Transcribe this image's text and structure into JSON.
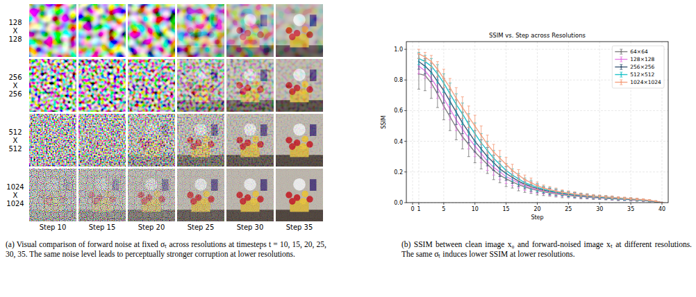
{
  "panel_a": {
    "row_labels": [
      "128 X 128",
      "256 X 256",
      "512 X 512",
      "1024 X 1024"
    ],
    "column_labels": [
      "Step 10",
      "Step 15",
      "Step 20",
      "Step 25",
      "Step 30",
      "Step 35"
    ]
  },
  "captions": {
    "a": "(a) Visual comparison of forward noise at fixed σₜ across resolutions at timesteps t = 10, 15, 20, 25, 30, 35. The same noise level leads to perceptually stronger corruption at lower resolutions.",
    "b": "(b) SSIM between clean image x₀ and forward-noised image xₜ at different resolutions. The same σₜ induces lower SSIM at lower resolutions."
  },
  "chart_data": {
    "type": "line",
    "title": "SSIM vs. Step across Resolutions",
    "x_label": "Step",
    "y_label": "SSIM",
    "x": [
      1,
      2,
      3,
      4,
      5,
      6,
      7,
      8,
      9,
      10,
      11,
      12,
      13,
      14,
      15,
      16,
      17,
      18,
      19,
      20,
      21,
      22,
      23,
      24,
      25,
      26,
      27,
      28,
      29,
      30,
      31,
      32,
      33,
      34,
      35,
      36,
      37,
      38,
      39,
      40
    ],
    "xlim": [
      -1,
      41
    ],
    "xticks": [
      0,
      1,
      5,
      10,
      15,
      20,
      25,
      30,
      35,
      40
    ],
    "ylim": [
      0,
      1.05
    ],
    "yticks": [
      {
        "value": 0,
        "label": "0.0"
      },
      {
        "value": 0.2,
        "label": "0.2"
      },
      {
        "value": 0.4,
        "label": "0.4"
      },
      {
        "value": 0.6,
        "label": "0.6"
      },
      {
        "value": 0.8,
        "label": "0.8"
      },
      {
        "value": 1.0,
        "label": "1.0"
      }
    ],
    "grid": true,
    "legend": "upper right",
    "marker": "o",
    "series": [
      {
        "name": "64×64",
        "color": "#7f7f7f",
        "values": [
          0.84,
          0.83,
          0.78,
          0.71,
          0.63,
          0.56,
          0.49,
          0.43,
          0.38,
          0.33,
          0.29,
          0.25,
          0.21,
          0.18,
          0.155,
          0.135,
          0.117,
          0.102,
          0.09,
          0.08,
          0.071,
          0.063,
          0.057,
          0.052,
          0.047,
          0.043,
          0.04,
          0.036,
          0.033,
          0.031,
          0.028,
          0.026,
          0.023,
          0.021,
          0.019,
          0.017,
          0.014,
          0.01,
          0.006,
          0
        ],
        "errors": [
          0.1,
          0.1,
          0.1,
          0.09,
          0.09,
          0.09,
          0.08,
          0.08,
          0.08,
          0.07,
          0.07,
          0.06,
          0.06,
          0.05,
          0.05,
          0.04,
          0.04,
          0.035,
          0.03,
          0.03,
          0.025,
          0.02,
          0.02,
          0.02,
          0.015,
          0.015,
          0.015,
          0.012,
          0.012,
          0.01,
          0.01,
          0.01,
          0.01,
          0.008,
          0.008,
          0.008,
          0.006,
          0.005,
          0.004,
          0.002
        ]
      },
      {
        "name": "128×128",
        "color": "#e67ee6",
        "values": [
          0.89,
          0.86,
          0.81,
          0.75,
          0.68,
          0.61,
          0.54,
          0.48,
          0.42,
          0.37,
          0.32,
          0.27,
          0.23,
          0.2,
          0.17,
          0.15,
          0.13,
          0.11,
          0.097,
          0.086,
          0.076,
          0.068,
          0.061,
          0.056,
          0.051,
          0.047,
          0.043,
          0.039,
          0.036,
          0.033,
          0.03,
          0.028,
          0.025,
          0.022,
          0.02,
          0.018,
          0.015,
          0.011,
          0.006,
          0
        ],
        "errors": [
          0.05,
          0.05,
          0.06,
          0.07,
          0.07,
          0.07,
          0.07,
          0.07,
          0.07,
          0.07,
          0.06,
          0.06,
          0.05,
          0.05,
          0.045,
          0.04,
          0.035,
          0.03,
          0.03,
          0.025,
          0.02,
          0.02,
          0.02,
          0.015,
          0.015,
          0.015,
          0.012,
          0.012,
          0.01,
          0.01,
          0.01,
          0.01,
          0.008,
          0.008,
          0.008,
          0.007,
          0.006,
          0.005,
          0.004,
          0.002
        ]
      },
      {
        "name": "256×256",
        "color": "#3d5a78",
        "values": [
          0.92,
          0.89,
          0.85,
          0.79,
          0.73,
          0.66,
          0.59,
          0.52,
          0.46,
          0.4,
          0.35,
          0.3,
          0.26,
          0.22,
          0.19,
          0.165,
          0.14,
          0.12,
          0.105,
          0.092,
          0.082,
          0.073,
          0.066,
          0.06,
          0.054,
          0.05,
          0.045,
          0.042,
          0.038,
          0.035,
          0.032,
          0.029,
          0.026,
          0.024,
          0.021,
          0.019,
          0.016,
          0.012,
          0.007,
          0
        ],
        "errors": [
          0.05,
          0.05,
          0.06,
          0.07,
          0.08,
          0.08,
          0.08,
          0.07,
          0.07,
          0.07,
          0.06,
          0.06,
          0.05,
          0.05,
          0.045,
          0.04,
          0.035,
          0.03,
          0.03,
          0.025,
          0.02,
          0.02,
          0.02,
          0.015,
          0.015,
          0.015,
          0.012,
          0.012,
          0.01,
          0.01,
          0.01,
          0.01,
          0.008,
          0.008,
          0.008,
          0.007,
          0.006,
          0.005,
          0.004,
          0.002
        ]
      },
      {
        "name": "512×512",
        "color": "#22c3c9",
        "values": [
          0.94,
          0.92,
          0.89,
          0.84,
          0.78,
          0.71,
          0.64,
          0.58,
          0.51,
          0.45,
          0.39,
          0.34,
          0.29,
          0.25,
          0.21,
          0.18,
          0.155,
          0.13,
          0.115,
          0.1,
          0.088,
          0.078,
          0.07,
          0.063,
          0.057,
          0.052,
          0.048,
          0.044,
          0.04,
          0.037,
          0.034,
          0.031,
          0.028,
          0.025,
          0.023,
          0.02,
          0.017,
          0.013,
          0.008,
          0
        ],
        "errors": [
          0.04,
          0.04,
          0.05,
          0.06,
          0.06,
          0.07,
          0.07,
          0.07,
          0.07,
          0.07,
          0.06,
          0.06,
          0.05,
          0.05,
          0.045,
          0.04,
          0.035,
          0.03,
          0.03,
          0.025,
          0.02,
          0.02,
          0.02,
          0.015,
          0.015,
          0.015,
          0.012,
          0.012,
          0.01,
          0.01,
          0.01,
          0.01,
          0.008,
          0.008,
          0.008,
          0.007,
          0.006,
          0.005,
          0.004,
          0.002
        ]
      },
      {
        "name": "1024×1024",
        "color": "#f5a282",
        "values": [
          0.97,
          0.95,
          0.92,
          0.87,
          0.81,
          0.75,
          0.68,
          0.62,
          0.56,
          0.5,
          0.44,
          0.38,
          0.33,
          0.29,
          0.25,
          0.21,
          0.18,
          0.15,
          0.13,
          0.11,
          0.095,
          0.085,
          0.075,
          0.068,
          0.062,
          0.056,
          0.051,
          0.047,
          0.043,
          0.04,
          0.037,
          0.034,
          0.031,
          0.028,
          0.025,
          0.022,
          0.019,
          0.015,
          0.009,
          0
        ],
        "errors": [
          0.03,
          0.03,
          0.04,
          0.05,
          0.06,
          0.06,
          0.07,
          0.07,
          0.07,
          0.07,
          0.06,
          0.06,
          0.05,
          0.05,
          0.045,
          0.04,
          0.035,
          0.03,
          0.03,
          0.025,
          0.02,
          0.02,
          0.02,
          0.015,
          0.015,
          0.015,
          0.012,
          0.012,
          0.01,
          0.01,
          0.01,
          0.01,
          0.008,
          0.008,
          0.008,
          0.007,
          0.006,
          0.005,
          0.004,
          0.002
        ]
      }
    ]
  }
}
